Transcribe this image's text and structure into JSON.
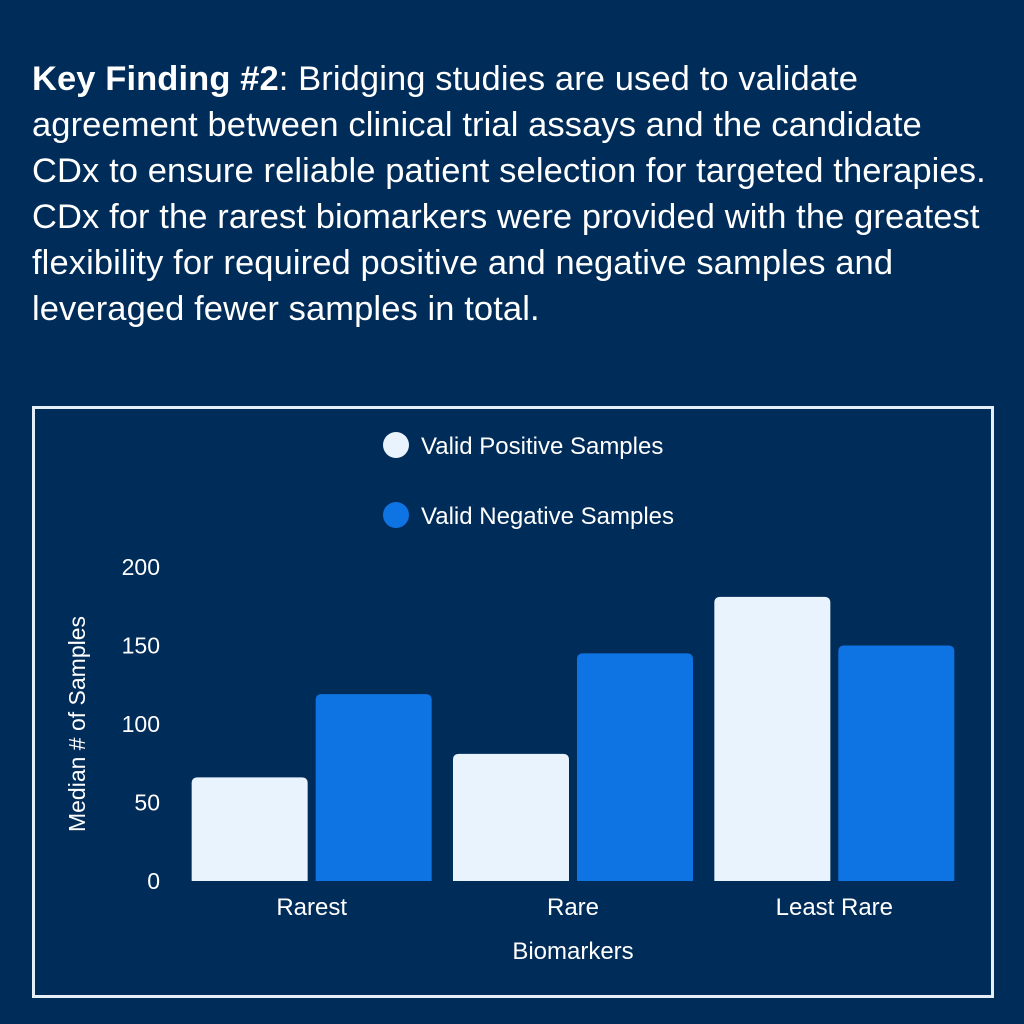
{
  "headline": {
    "bold": "Key Finding #2",
    "rest": ": Bridging studies are used to validate agreement between clinical trial assays and the candidate CDx to ensure reliable patient selection for targeted therapies. CDx for the rarest biomarkers were provided with the greatest flexibility for required positive and negative samples and leveraged fewer samples in total."
  },
  "colors": {
    "background": "#002C59",
    "positive": "#E8F3FD",
    "negative": "#0F74E3",
    "frame": "#E6EEF7"
  },
  "chart_data": {
    "type": "bar",
    "title": "",
    "xlabel": "Biomarkers",
    "ylabel": "Median # of Samples",
    "categories": [
      "Rarest",
      "Rare",
      "Least Rare"
    ],
    "ylim": [
      0,
      200
    ],
    "yticks": [
      "0",
      "50",
      "100",
      "150",
      "200"
    ],
    "grid": false,
    "legend_position": "top-center",
    "series": [
      {
        "name": "Valid Positive Samples",
        "color": "#E8F3FD",
        "values": [
          66,
          81,
          181
        ]
      },
      {
        "name": "Valid Negative Samples",
        "color": "#0F74E3",
        "values": [
          119,
          145,
          150
        ]
      }
    ]
  }
}
